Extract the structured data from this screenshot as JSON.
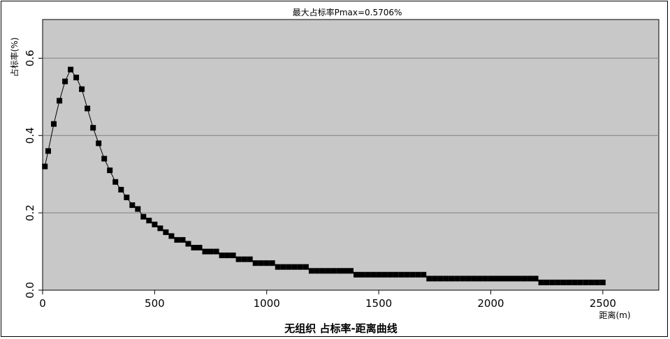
{
  "chart_data": {
    "type": "line",
    "title": "最大占标率Pmax=0.5706%",
    "caption": "无组织  占标率-距离曲线",
    "xlabel": "距离(m)",
    "ylabel": "占标率(%)",
    "xlim": [
      0,
      2750
    ],
    "ylim": [
      0,
      0.7
    ],
    "xticks": [
      0,
      500,
      1000,
      1500,
      2000,
      2500
    ],
    "xtick_labels": [
      "0",
      "500",
      "1000",
      "1500",
      "2000",
      "2500"
    ],
    "yticks": [
      0,
      0.2,
      0.4,
      0.6
    ],
    "ytick_labels": [
      "0",
      "0.2",
      "0.4",
      "0.6"
    ],
    "y_origin_label": "0.0",
    "grid_y": true,
    "colors": {
      "plot_background": "#c8c8c8",
      "line": "#000000",
      "grid": "#808080"
    },
    "series": [
      {
        "marker": "square",
        "points": [
          [
            10,
            0.32
          ],
          [
            25,
            0.36
          ],
          [
            50,
            0.43
          ],
          [
            75,
            0.49
          ],
          [
            100,
            0.54
          ],
          [
            125,
            0.5706
          ],
          [
            150,
            0.55
          ],
          [
            175,
            0.52
          ],
          [
            200,
            0.47
          ],
          [
            225,
            0.42
          ],
          [
            250,
            0.38
          ],
          [
            275,
            0.34
          ],
          [
            300,
            0.31
          ],
          [
            325,
            0.28
          ],
          [
            350,
            0.26
          ],
          [
            375,
            0.24
          ],
          [
            400,
            0.22
          ],
          [
            425,
            0.21
          ],
          [
            450,
            0.19
          ],
          [
            475,
            0.18
          ],
          [
            500,
            0.17
          ],
          [
            525,
            0.16
          ],
          [
            550,
            0.15
          ],
          [
            575,
            0.14
          ],
          [
            600,
            0.13
          ],
          [
            625,
            0.13
          ],
          [
            650,
            0.12
          ],
          [
            675,
            0.11
          ],
          [
            700,
            0.11
          ],
          [
            725,
            0.1
          ],
          [
            750,
            0.1
          ],
          [
            775,
            0.1
          ],
          [
            800,
            0.09
          ],
          [
            825,
            0.09
          ],
          [
            850,
            0.09
          ],
          [
            875,
            0.08
          ],
          [
            900,
            0.08
          ],
          [
            925,
            0.08
          ],
          [
            950,
            0.07
          ],
          [
            975,
            0.07
          ],
          [
            1000,
            0.07
          ],
          [
            1025,
            0.07
          ],
          [
            1050,
            0.06
          ],
          [
            1075,
            0.06
          ],
          [
            1100,
            0.06
          ],
          [
            1125,
            0.06
          ],
          [
            1150,
            0.06
          ],
          [
            1175,
            0.06
          ],
          [
            1200,
            0.05
          ],
          [
            1225,
            0.05
          ],
          [
            1250,
            0.05
          ],
          [
            1275,
            0.05
          ],
          [
            1300,
            0.05
          ],
          [
            1325,
            0.05
          ],
          [
            1350,
            0.05
          ],
          [
            1375,
            0.05
          ],
          [
            1400,
            0.04
          ],
          [
            1425,
            0.04
          ],
          [
            1450,
            0.04
          ],
          [
            1475,
            0.04
          ],
          [
            1500,
            0.04
          ],
          [
            1525,
            0.04
          ],
          [
            1550,
            0.04
          ],
          [
            1575,
            0.04
          ],
          [
            1600,
            0.04
          ],
          [
            1625,
            0.04
          ],
          [
            1650,
            0.04
          ],
          [
            1675,
            0.04
          ],
          [
            1700,
            0.04
          ],
          [
            1725,
            0.03
          ],
          [
            1750,
            0.03
          ],
          [
            1775,
            0.03
          ],
          [
            1800,
            0.03
          ],
          [
            1825,
            0.03
          ],
          [
            1850,
            0.03
          ],
          [
            1875,
            0.03
          ],
          [
            1900,
            0.03
          ],
          [
            1925,
            0.03
          ],
          [
            1950,
            0.03
          ],
          [
            1975,
            0.03
          ],
          [
            2000,
            0.03
          ],
          [
            2025,
            0.03
          ],
          [
            2050,
            0.03
          ],
          [
            2075,
            0.03
          ],
          [
            2100,
            0.03
          ],
          [
            2125,
            0.03
          ],
          [
            2150,
            0.03
          ],
          [
            2175,
            0.03
          ],
          [
            2200,
            0.03
          ],
          [
            2225,
            0.02
          ],
          [
            2250,
            0.02
          ],
          [
            2275,
            0.02
          ],
          [
            2300,
            0.02
          ],
          [
            2325,
            0.02
          ],
          [
            2350,
            0.02
          ],
          [
            2375,
            0.02
          ],
          [
            2400,
            0.02
          ],
          [
            2425,
            0.02
          ],
          [
            2450,
            0.02
          ],
          [
            2475,
            0.02
          ],
          [
            2500,
            0.02
          ]
        ]
      }
    ]
  }
}
